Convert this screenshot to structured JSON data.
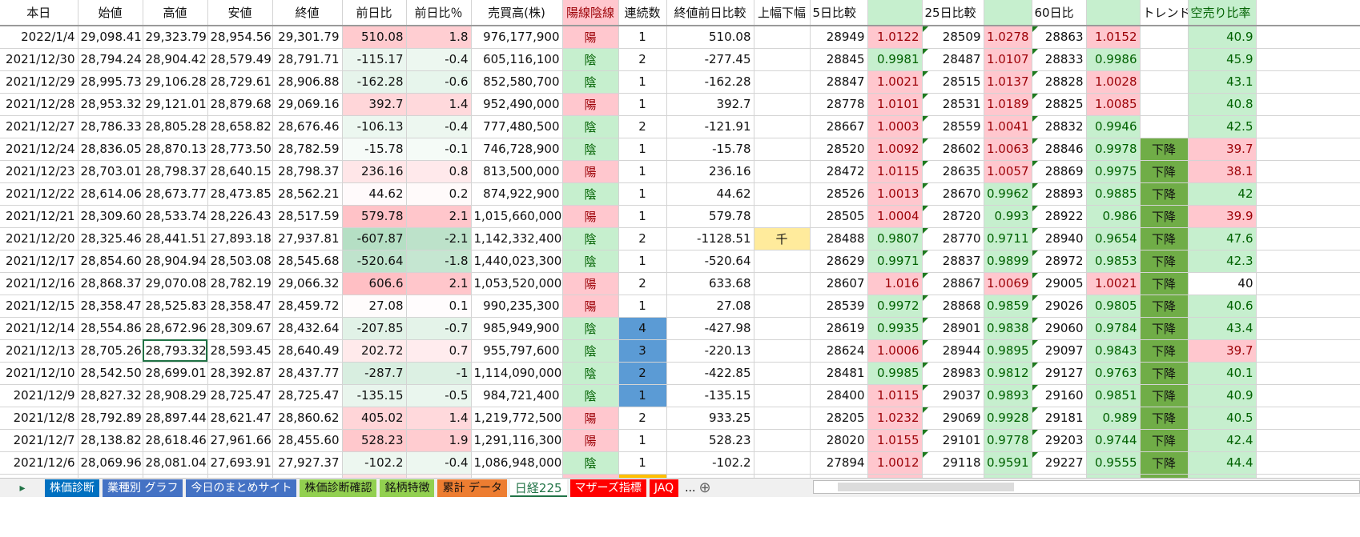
{
  "headers": [
    "本日",
    "始値",
    "高値",
    "安値",
    "終値",
    "前日比",
    "前日比％",
    "売買高(株)",
    "陽線陰線",
    "連続数",
    "終値前日比較",
    "上幅下幅",
    "5日比較",
    "",
    "25日比較",
    "",
    "60日比",
    "",
    "トレンド",
    "空売り比率"
  ],
  "colors": {
    "pos_bg": "#ffc7ce",
    "pos_text": "#9c0006",
    "neg_bg": "#c6efce",
    "neg_text": "#006100",
    "trend": "#70ad47",
    "streak_highlight": "#5b9bd5",
    "partial_streak": "#ffc000",
    "limit_badge": "#ffeb9c"
  },
  "rows": [
    [
      "2022/1/4",
      "29,098.41",
      "29,323.79",
      "28,954.56",
      "29,301.79",
      "510.08",
      "1.8",
      "976,177,900",
      "陽",
      "1",
      "510.08",
      "",
      "28949",
      "1.0122",
      "28509",
      "1.0278",
      "28863",
      "1.0152",
      "",
      "40.9"
    ],
    [
      "2021/12/30",
      "28,794.24",
      "28,904.42",
      "28,579.49",
      "28,791.71",
      "-115.17",
      "-0.4",
      "605,116,100",
      "陰",
      "2",
      "-277.45",
      "",
      "28845",
      "0.9981",
      "28487",
      "1.0107",
      "28833",
      "0.9986",
      "",
      "45.9"
    ],
    [
      "2021/12/29",
      "28,995.73",
      "29,106.28",
      "28,729.61",
      "28,906.88",
      "-162.28",
      "-0.6",
      "852,580,700",
      "陰",
      "1",
      "-162.28",
      "",
      "28847",
      "1.0021",
      "28515",
      "1.0137",
      "28828",
      "1.0028",
      "",
      "43.1"
    ],
    [
      "2021/12/28",
      "28,953.32",
      "29,121.01",
      "28,879.68",
      "29,069.16",
      "392.7",
      "1.4",
      "952,490,000",
      "陽",
      "1",
      "392.7",
      "",
      "28778",
      "1.0101",
      "28531",
      "1.0189",
      "28825",
      "1.0085",
      "",
      "40.8"
    ],
    [
      "2021/12/27",
      "28,786.33",
      "28,805.28",
      "28,658.82",
      "28,676.46",
      "-106.13",
      "-0.4",
      "777,480,500",
      "陰",
      "2",
      "-121.91",
      "",
      "28667",
      "1.0003",
      "28559",
      "1.0041",
      "28832",
      "0.9946",
      "",
      "42.5"
    ],
    [
      "2021/12/24",
      "28,836.05",
      "28,870.13",
      "28,773.50",
      "28,782.59",
      "-15.78",
      "-0.1",
      "746,728,900",
      "陰",
      "1",
      "-15.78",
      "",
      "28520",
      "1.0092",
      "28602",
      "1.0063",
      "28846",
      "0.9978",
      "下降",
      "39.7"
    ],
    [
      "2021/12/23",
      "28,703.01",
      "28,798.37",
      "28,640.15",
      "28,798.37",
      "236.16",
      "0.8",
      "813,500,000",
      "陽",
      "1",
      "236.16",
      "",
      "28472",
      "1.0115",
      "28635",
      "1.0057",
      "28869",
      "0.9975",
      "下降",
      "38.1"
    ],
    [
      "2021/12/22",
      "28,614.06",
      "28,673.77",
      "28,473.85",
      "28,562.21",
      "44.62",
      "0.2",
      "874,922,900",
      "陰",
      "1",
      "44.62",
      "",
      "28526",
      "1.0013",
      "28670",
      "0.9962",
      "28893",
      "0.9885",
      "下降",
      "42"
    ],
    [
      "2021/12/21",
      "28,309.60",
      "28,533.74",
      "28,226.43",
      "28,517.59",
      "579.78",
      "2.1",
      "1,015,660,000",
      "陽",
      "1",
      "579.78",
      "",
      "28505",
      "1.0004",
      "28720",
      "0.993",
      "28922",
      "0.986",
      "下降",
      "39.9"
    ],
    [
      "2021/12/20",
      "28,325.46",
      "28,441.51",
      "27,893.18",
      "27,937.81",
      "-607.87",
      "-2.1",
      "1,142,332,400",
      "陰",
      "2",
      "-1128.51",
      "千",
      "28488",
      "0.9807",
      "28770",
      "0.9711",
      "28940",
      "0.9654",
      "下降",
      "47.6"
    ],
    [
      "2021/12/17",
      "28,854.60",
      "28,904.94",
      "28,503.08",
      "28,545.68",
      "-520.64",
      "-1.8",
      "1,440,023,300",
      "陰",
      "1",
      "-520.64",
      "",
      "28629",
      "0.9971",
      "28837",
      "0.9899",
      "28972",
      "0.9853",
      "下降",
      "42.3"
    ],
    [
      "2021/12/16",
      "28,868.37",
      "29,070.08",
      "28,782.19",
      "29,066.32",
      "606.6",
      "2.1",
      "1,053,520,000",
      "陽",
      "2",
      "633.68",
      "",
      "28607",
      "1.016",
      "28867",
      "1.0069",
      "29005",
      "1.0021",
      "下降",
      "40"
    ],
    [
      "2021/12/15",
      "28,358.47",
      "28,525.83",
      "28,358.47",
      "28,459.72",
      "27.08",
      "0.1",
      "990,235,300",
      "陽",
      "1",
      "27.08",
      "",
      "28539",
      "0.9972",
      "28868",
      "0.9859",
      "29026",
      "0.9805",
      "下降",
      "40.6"
    ],
    [
      "2021/12/14",
      "28,554.86",
      "28,672.96",
      "28,309.67",
      "28,432.64",
      "-207.85",
      "-0.7",
      "985,949,900",
      "陰",
      "4",
      "-427.98",
      "",
      "28619",
      "0.9935",
      "28901",
      "0.9838",
      "29060",
      "0.9784",
      "下降",
      "43.4"
    ],
    [
      "2021/12/13",
      "28,705.26",
      "28,793.32",
      "28,593.45",
      "28,640.49",
      "202.72",
      "0.7",
      "955,797,600",
      "陰",
      "3",
      "-220.13",
      "",
      "28624",
      "1.0006",
      "28944",
      "0.9895",
      "29097",
      "0.9843",
      "下降",
      "39.7"
    ],
    [
      "2021/12/10",
      "28,542.50",
      "28,699.01",
      "28,392.87",
      "28,437.77",
      "-287.7",
      "-1",
      "1,114,090,000",
      "陰",
      "2",
      "-422.85",
      "",
      "28481",
      "0.9985",
      "28983",
      "0.9812",
      "29127",
      "0.9763",
      "下降",
      "40.1"
    ],
    [
      "2021/12/9",
      "28,827.32",
      "28,908.29",
      "28,725.47",
      "28,725.47",
      "-135.15",
      "-0.5",
      "984,721,400",
      "陰",
      "1",
      "-135.15",
      "",
      "28400",
      "1.0115",
      "29037",
      "0.9893",
      "29160",
      "0.9851",
      "下降",
      "40.9"
    ],
    [
      "2021/12/8",
      "28,792.89",
      "28,897.44",
      "28,621.47",
      "28,860.62",
      "405.02",
      "1.4",
      "1,219,772,500",
      "陽",
      "2",
      "933.25",
      "",
      "28205",
      "1.0232",
      "29069",
      "0.9928",
      "29181",
      "0.989",
      "下降",
      "40.5"
    ],
    [
      "2021/12/7",
      "28,138.82",
      "28,618.46",
      "27,961.66",
      "28,455.60",
      "528.23",
      "1.9",
      "1,291,116,300",
      "陽",
      "1",
      "528.23",
      "",
      "28020",
      "1.0155",
      "29101",
      "0.9778",
      "29203",
      "0.9744",
      "下降",
      "42.4"
    ],
    [
      "2021/12/6",
      "28,069.96",
      "28,081.04",
      "27,693.91",
      "27,927.37",
      "-102.2",
      "-0.4",
      "1,086,948,000",
      "陰",
      "1",
      "-102.2",
      "",
      "27894",
      "1.0012",
      "29118",
      "0.9591",
      "29227",
      "0.9555",
      "下降",
      "44.4"
    ]
  ],
  "highlighted_streak_rows": [
    13,
    14,
    15,
    16
  ],
  "selected_cell": {
    "row": 14,
    "col": 2
  },
  "sheet_tabs": [
    {
      "label": "株価診断",
      "bg": "#0070c0",
      "fg": "#ffffff"
    },
    {
      "label": "業種別 グラフ",
      "bg": "#4472c4",
      "fg": "#ffffff"
    },
    {
      "label": "今日のまとめサイト",
      "bg": "#4472c4",
      "fg": "#ffffff"
    },
    {
      "label": "株価診断確認",
      "bg": "#92d050",
      "fg": "#111111"
    },
    {
      "label": "銘柄特徴",
      "bg": "#92d050",
      "fg": "#111111"
    },
    {
      "label": "累計 データ",
      "bg": "#ed7d31",
      "fg": "#111111"
    },
    {
      "label": "日経225",
      "bg": "#ffffff",
      "fg": "#217346",
      "active": true
    },
    {
      "label": "マザーズ指標",
      "bg": "#ff0000",
      "fg": "#ffffff"
    },
    {
      "label": "JAQ",
      "bg": "#ff0000",
      "fg": "#ffffff"
    }
  ],
  "tabs_more": "...",
  "add_sheet": "⊕",
  "nav_next": "▸"
}
